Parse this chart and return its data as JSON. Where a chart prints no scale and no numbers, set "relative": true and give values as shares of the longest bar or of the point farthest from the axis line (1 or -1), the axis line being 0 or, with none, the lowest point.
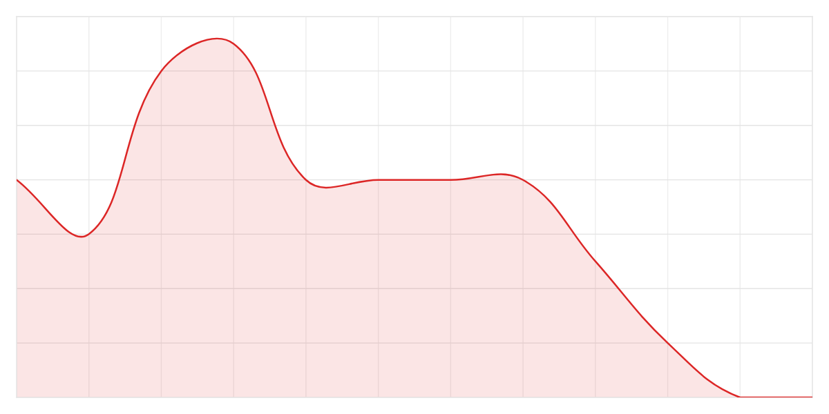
{
  "chart_data": {
    "type": "area",
    "relative": true,
    "grid": true,
    "categories": [
      null,
      null,
      null,
      null,
      null,
      null,
      null,
      null,
      null,
      null,
      null,
      null
    ],
    "series": [
      {
        "color": "#dc2626",
        "values": [
          0.615,
          0.462,
          0.923,
          1,
          0.615,
          0.615,
          0.615,
          0.615,
          0.385,
          0.154,
          0,
          0
        ]
      }
    ]
  }
}
